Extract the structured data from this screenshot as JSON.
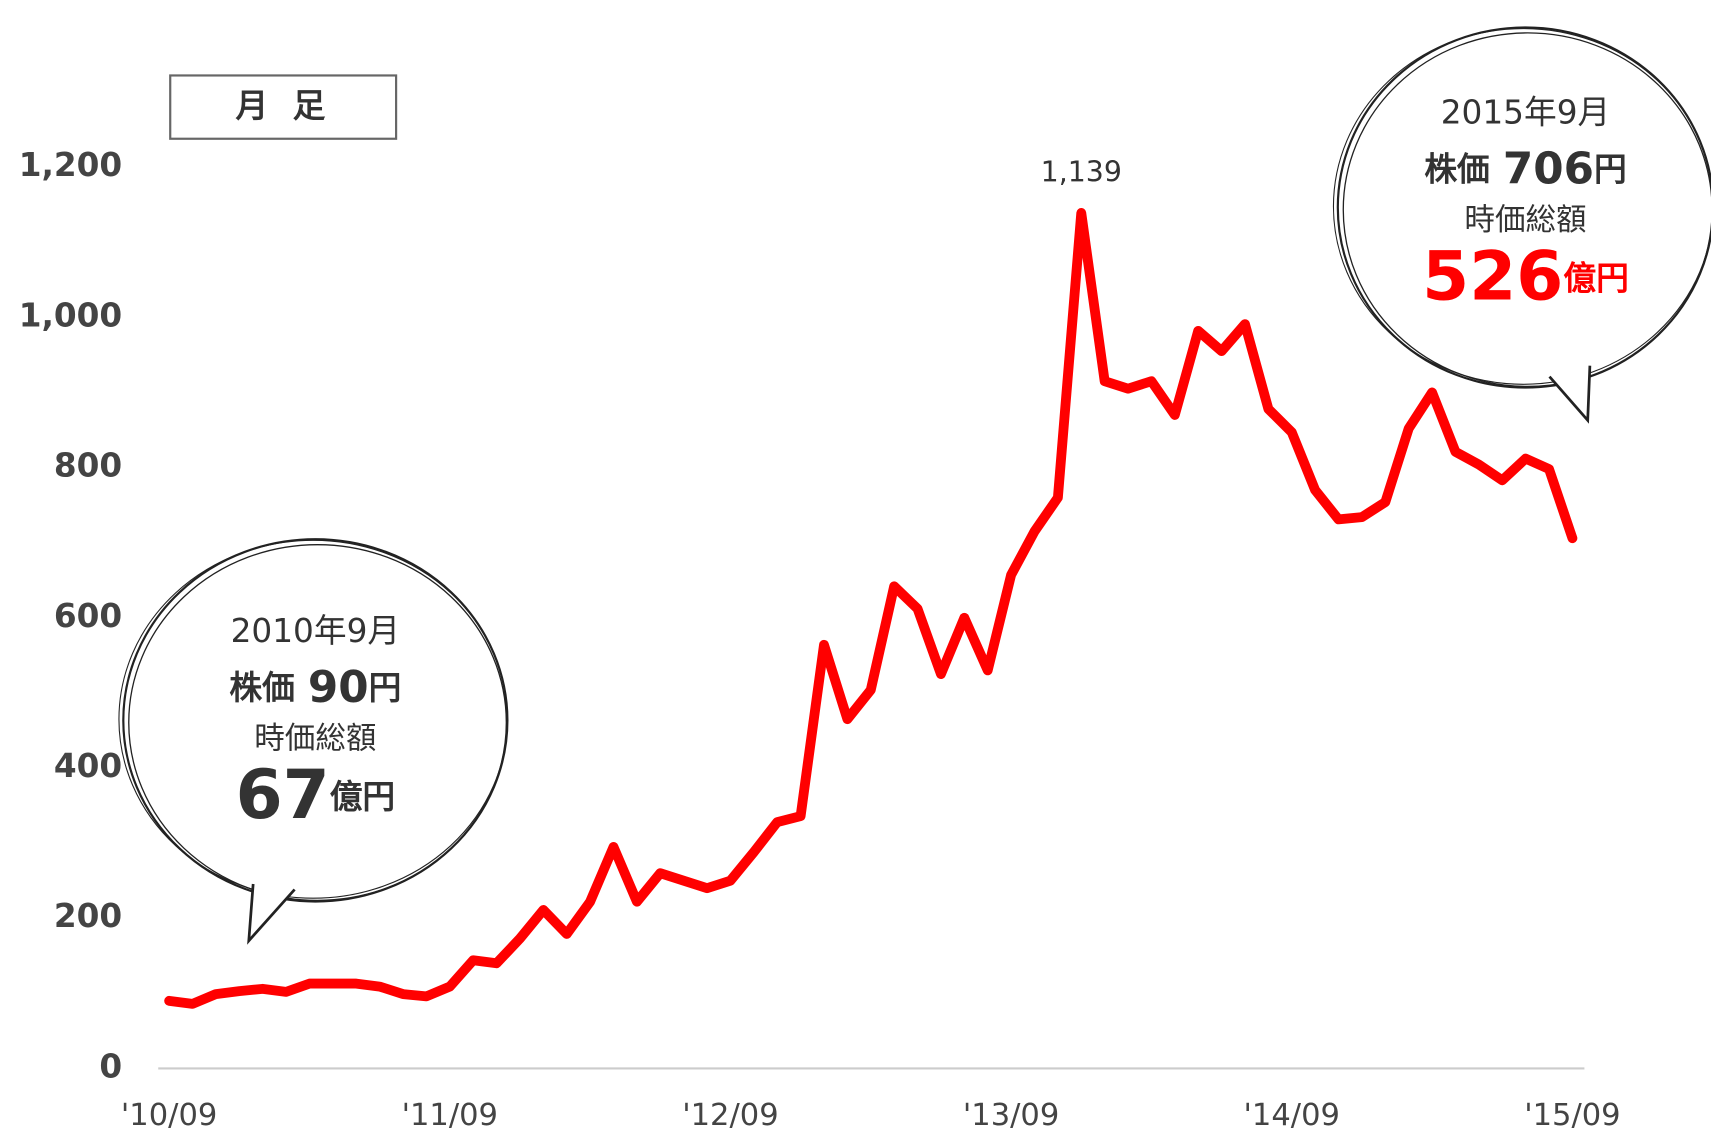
{
  "chart_data": {
    "type": "line",
    "legend_box": "月 足",
    "categories": [
      "'10/09",
      null,
      null,
      null,
      null,
      null,
      null,
      null,
      null,
      null,
      null,
      null,
      "'11/09",
      null,
      null,
      null,
      null,
      null,
      null,
      null,
      null,
      null,
      null,
      null,
      "'12/09",
      null,
      null,
      null,
      null,
      null,
      null,
      null,
      null,
      null,
      null,
      null,
      "'13/09",
      null,
      null,
      null,
      null,
      null,
      null,
      null,
      null,
      null,
      null,
      null,
      "'14/09",
      null,
      null,
      null,
      null,
      null,
      null,
      null,
      null,
      null,
      null,
      null,
      "'15/09"
    ],
    "series": [
      {
        "color": "#ff0000",
        "values": [
          90,
          86,
          99,
          103,
          106,
          102,
          113,
          113,
          113,
          109,
          99,
          96,
          109,
          144,
          140,
          173,
          211,
          179,
          222,
          295,
          222,
          260,
          250,
          240,
          250,
          288,
          328,
          336,
          564,
          465,
          504,
          642,
          612,
          525,
          600,
          530,
          657,
          715,
          760,
          1139,
          915,
          905,
          915,
          870,
          982,
          955,
          991,
          878,
          847,
          770,
          731,
          734,
          754,
          852,
          900,
          821,
          804,
          783,
          812,
          798,
          706
        ],
        "value_labels": [
          null,
          null,
          null,
          null,
          null,
          null,
          null,
          null,
          null,
          null,
          null,
          null,
          null,
          null,
          null,
          null,
          null,
          null,
          null,
          null,
          null,
          null,
          null,
          null,
          null,
          null,
          null,
          null,
          null,
          null,
          null,
          null,
          null,
          null,
          null,
          null,
          null,
          null,
          null,
          "1,139",
          null,
          null,
          null,
          null,
          null,
          null,
          null,
          null,
          null,
          null,
          null,
          null,
          null,
          null,
          null,
          null,
          null,
          null,
          null,
          null,
          null
        ]
      }
    ],
    "ylim": [
      0,
      1200
    ],
    "yticks": [
      0,
      200,
      400,
      600,
      800,
      {
        "value": 1000,
        "label": "1,000"
      },
      {
        "value": 1200,
        "label": "1,200"
      }
    ],
    "annotations": [
      {
        "date": "2010年9月",
        "price_label": "株価",
        "price": "90",
        "price_unit": "円",
        "cap_label": "時価総額",
        "cap": "67",
        "cap_unit": "億円"
      },
      {
        "date": "2015年9月",
        "price_label": "株価",
        "price": "706",
        "price_unit": "円",
        "cap_label": "時価総額",
        "cap": "526",
        "cap_unit": "億円"
      }
    ]
  }
}
